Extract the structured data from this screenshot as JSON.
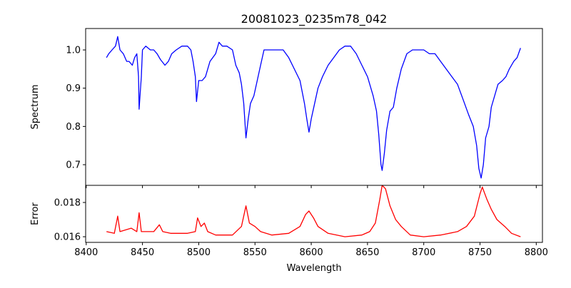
{
  "chart_data": [
    {
      "type": "line",
      "title": "20081023_0235m78_042",
      "xlabel": "",
      "ylabel": "Spectrum",
      "xlim": [
        8399.5,
        8805.5
      ],
      "ylim": [
        0.646,
        1.056
      ],
      "xticks": [
        8400,
        8450,
        8500,
        8550,
        8600,
        8650,
        8700,
        8750,
        8800
      ],
      "yticks": [
        0.7,
        0.8,
        0.9,
        1.0
      ],
      "ytick_labels": [
        "0.7",
        "0.8",
        "0.9",
        "1.0"
      ],
      "color": "#0000ff",
      "series": [
        {
          "name": "Spectrum",
          "x": [
            8418,
            8420,
            8423,
            8426,
            8428,
            8430,
            8433,
            8436,
            8438,
            8441,
            8443,
            8445,
            8446.5,
            8447,
            8449,
            8450,
            8453,
            8457,
            8460,
            8463,
            8466,
            8470,
            8473,
            8476,
            8480,
            8485,
            8490,
            8493,
            8495,
            8497,
            8498,
            8500,
            8503,
            8506,
            8510,
            8515,
            8518,
            8521,
            8525,
            8530,
            8533,
            8536,
            8538,
            8540,
            8542,
            8544,
            8546,
            8549,
            8552,
            8555,
            8558,
            8562,
            8566,
            8570,
            8575,
            8580,
            8585,
            8590,
            8594,
            8596,
            8598,
            8600,
            8603,
            8606,
            8610,
            8615,
            8620,
            8625,
            8630,
            8635,
            8640,
            8645,
            8650,
            8655,
            8658,
            8660,
            8662,
            8663,
            8665,
            8667,
            8670,
            8673,
            8676,
            8680,
            8685,
            8690,
            8695,
            8700,
            8705,
            8710,
            8715,
            8720,
            8725,
            8730,
            8735,
            8740,
            8744,
            8747,
            8749,
            8751,
            8753,
            8755,
            8758,
            8760,
            8763,
            8766,
            8770,
            8773,
            8776,
            8780,
            8783,
            8786
          ],
          "y": [
            0.98,
            0.99,
            1.0,
            1.01,
            1.035,
            1.0,
            0.99,
            0.97,
            0.97,
            0.96,
            0.98,
            0.99,
            0.93,
            0.845,
            0.93,
            1.0,
            1.01,
            1.0,
            1.0,
            0.99,
            0.975,
            0.96,
            0.97,
            0.99,
            1.0,
            1.01,
            1.01,
            1.0,
            0.97,
            0.93,
            0.865,
            0.92,
            0.92,
            0.93,
            0.97,
            0.99,
            1.02,
            1.01,
            1.01,
            1.0,
            0.96,
            0.94,
            0.91,
            0.86,
            0.77,
            0.82,
            0.86,
            0.88,
            0.92,
            0.96,
            1.0,
            1.0,
            1.0,
            1.0,
            1.0,
            0.98,
            0.95,
            0.92,
            0.86,
            0.82,
            0.785,
            0.82,
            0.86,
            0.9,
            0.93,
            0.96,
            0.98,
            1.0,
            1.01,
            1.01,
            0.99,
            0.96,
            0.93,
            0.88,
            0.84,
            0.78,
            0.7,
            0.685,
            0.73,
            0.79,
            0.84,
            0.85,
            0.9,
            0.95,
            0.99,
            1.0,
            1.0,
            1.0,
            0.99,
            0.99,
            0.97,
            0.95,
            0.93,
            0.91,
            0.87,
            0.83,
            0.8,
            0.75,
            0.69,
            0.665,
            0.7,
            0.77,
            0.8,
            0.85,
            0.88,
            0.91,
            0.92,
            0.93,
            0.95,
            0.97,
            0.98,
            1.005
          ]
        }
      ]
    },
    {
      "type": "line",
      "title": "",
      "xlabel": "Wavelength",
      "ylabel": "Error",
      "xlim": [
        8399.5,
        8805.5
      ],
      "ylim": [
        0.01567,
        0.019
      ],
      "xticks": [
        8400,
        8450,
        8500,
        8550,
        8600,
        8650,
        8700,
        8750,
        8800
      ],
      "xtick_labels": [
        "8400",
        "8450",
        "8500",
        "8550",
        "8600",
        "8650",
        "8700",
        "8750",
        "8800"
      ],
      "yticks": [
        0.016,
        0.018
      ],
      "ytick_labels": [
        "0.016",
        "0.018"
      ],
      "color": "#ff0000",
      "series": [
        {
          "name": "Error",
          "x": [
            8418,
            8425,
            8428,
            8430,
            8440,
            8445,
            8447,
            8449,
            8455,
            8460,
            8465,
            8468,
            8475,
            8490,
            8497,
            8499,
            8502,
            8505,
            8508,
            8515,
            8530,
            8538,
            8542,
            8545,
            8550,
            8555,
            8565,
            8580,
            8590,
            8595,
            8598,
            8602,
            8606,
            8615,
            8630,
            8645,
            8652,
            8657,
            8661,
            8663,
            8666,
            8670,
            8675,
            8680,
            8688,
            8700,
            8715,
            8730,
            8738,
            8745,
            8750,
            8752,
            8756,
            8760,
            8765,
            8772,
            8778,
            8786
          ],
          "y": [
            0.0163,
            0.0162,
            0.0172,
            0.0163,
            0.0165,
            0.0163,
            0.0174,
            0.0163,
            0.0163,
            0.0163,
            0.0167,
            0.0163,
            0.0162,
            0.0162,
            0.0163,
            0.0171,
            0.0166,
            0.0168,
            0.0163,
            0.0161,
            0.0161,
            0.0166,
            0.0178,
            0.0168,
            0.0166,
            0.0163,
            0.0161,
            0.0162,
            0.0166,
            0.0173,
            0.0175,
            0.0171,
            0.0166,
            0.0162,
            0.016,
            0.0161,
            0.0163,
            0.0168,
            0.0182,
            0.019,
            0.0188,
            0.0178,
            0.017,
            0.0166,
            0.0161,
            0.016,
            0.0161,
            0.0163,
            0.0166,
            0.0172,
            0.0185,
            0.0189,
            0.0182,
            0.0176,
            0.017,
            0.0166,
            0.0162,
            0.016
          ]
        }
      ]
    }
  ]
}
